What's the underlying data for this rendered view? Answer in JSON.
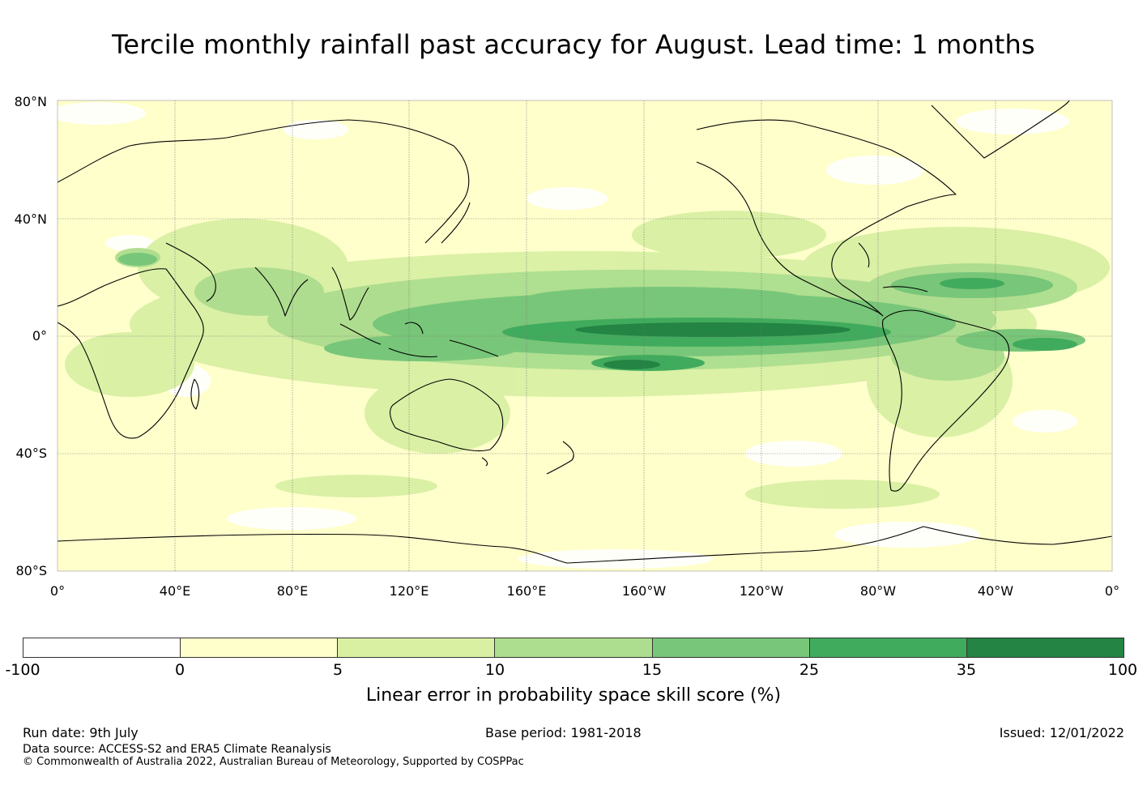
{
  "title": "Tercile monthly rainfall past accuracy for August. Lead time: 1 months",
  "map": {
    "projection": "equirectangular",
    "lon_range": [
      "0°",
      "0°"
    ],
    "lat_range": [
      "80°S",
      "80°N"
    ],
    "lat_labels": [
      "80°N",
      "40°N",
      "0°",
      "40°S",
      "80°S"
    ],
    "lon_labels": [
      "0°",
      "40°E",
      "80°E",
      "120°E",
      "160°E",
      "160°W",
      "120°W",
      "80°W",
      "40°W",
      "0°"
    ],
    "grid": true,
    "land_outline_color": "#000000"
  },
  "colorbar": {
    "ticks": [
      "-100",
      "0",
      "5",
      "10",
      "15",
      "25",
      "35",
      "100"
    ],
    "colors": [
      "#ffffff",
      "#ffffcc",
      "#d9f0a3",
      "#addd8e",
      "#78c679",
      "#41ab5d",
      "#238443"
    ],
    "label": "Linear error in probability space skill score (%)"
  },
  "footer": {
    "run_date": "Run date: 9th July",
    "base_period": "Base period: 1981-2018",
    "issued": "Issued: 12/01/2022",
    "data_source": "Data source: ACCESS-S2 and ERA5 Climate Reanalysis",
    "copyright": "© Commonwealth of Australia 2022, Australian Bureau of Meteorology, Supported by COSPPac"
  }
}
